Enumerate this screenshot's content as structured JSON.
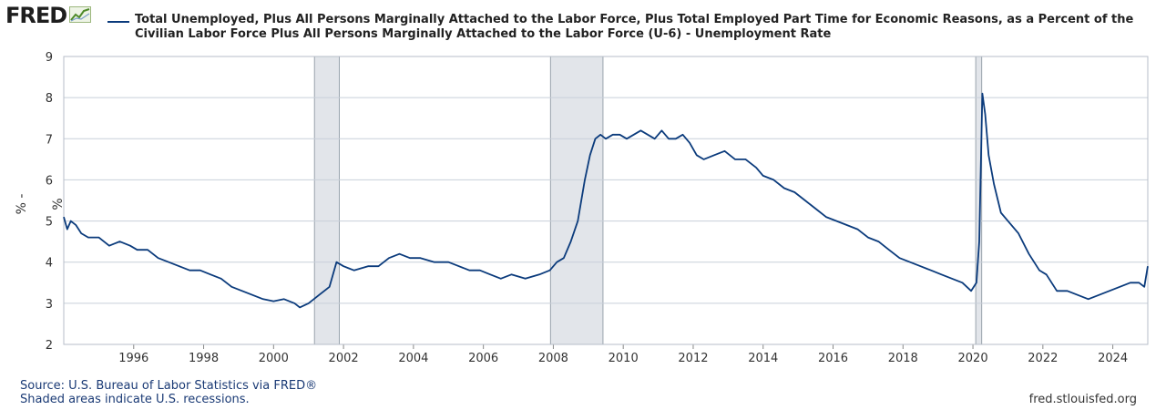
{
  "header": {
    "logo_text": "FRED",
    "logo_icon": "line-chart-icon"
  },
  "source": {
    "line1": "Source: U.S. Bureau of Labor Statistics via FRED®",
    "line2": "Shaded areas indicate U.S. recessions.",
    "site": "fred.stlouisfed.org"
  },
  "colors": {
    "series": "#0b3b7c",
    "recession": "#e2e5ea",
    "grid": "#c8cfd9"
  },
  "chart_data": {
    "type": "line",
    "title": "",
    "xlabel": "",
    "ylabel": "% - %",
    "xlim": [
      1994.0,
      2025.0
    ],
    "ylim": [
      2,
      9
    ],
    "yticks": [
      2,
      3,
      4,
      5,
      6,
      7,
      8,
      9
    ],
    "xticks": [
      1996,
      1998,
      2000,
      2002,
      2004,
      2006,
      2008,
      2010,
      2012,
      2014,
      2016,
      2018,
      2020,
      2022,
      2024
    ],
    "grid": true,
    "legend_position": "top",
    "recessions": [
      [
        2001.17,
        2001.88
      ],
      [
        2007.92,
        2009.42
      ],
      [
        2020.08,
        2020.25
      ]
    ],
    "series": [
      {
        "name": "Total Unemployed, Plus All Persons Marginally Attached to the Labor Force, Plus Total Employed Part Time for Economic Reasons, as a Percent of the Civilian Labor Force Plus All Persons Marginally Attached to the Labor Force (U-6) - Unemployment Rate",
        "x": [
          1994.0,
          1994.1,
          1994.2,
          1994.35,
          1994.5,
          1994.7,
          1995.0,
          1995.3,
          1995.6,
          1995.9,
          1996.1,
          1996.4,
          1996.7,
          1997.0,
          1997.3,
          1997.6,
          1997.9,
          1998.2,
          1998.5,
          1998.8,
          1999.1,
          1999.4,
          1999.7,
          2000.0,
          2000.3,
          2000.6,
          2000.75,
          2001.0,
          2001.3,
          2001.6,
          2001.8,
          2002.0,
          2002.3,
          2002.7,
          2003.0,
          2003.3,
          2003.6,
          2003.9,
          2004.2,
          2004.6,
          2005.0,
          2005.3,
          2005.6,
          2005.9,
          2006.2,
          2006.5,
          2006.8,
          2007.2,
          2007.6,
          2007.9,
          2008.1,
          2008.3,
          2008.5,
          2008.7,
          2008.9,
          2009.05,
          2009.2,
          2009.35,
          2009.5,
          2009.7,
          2009.9,
          2010.1,
          2010.3,
          2010.5,
          2010.7,
          2010.9,
          2011.1,
          2011.3,
          2011.5,
          2011.7,
          2011.9,
          2012.1,
          2012.3,
          2012.6,
          2012.9,
          2013.2,
          2013.5,
          2013.8,
          2014.0,
          2014.3,
          2014.6,
          2014.9,
          2015.2,
          2015.5,
          2015.8,
          2016.1,
          2016.4,
          2016.7,
          2017.0,
          2017.3,
          2017.6,
          2017.9,
          2018.2,
          2018.5,
          2018.8,
          2019.1,
          2019.4,
          2019.7,
          2019.95,
          2020.1,
          2020.18,
          2020.27,
          2020.35,
          2020.45,
          2020.6,
          2020.8,
          2021.0,
          2021.3,
          2021.6,
          2021.9,
          2022.1,
          2022.4,
          2022.7,
          2023.0,
          2023.3,
          2023.6,
          2023.9,
          2024.2,
          2024.5,
          2024.75,
          2024.9,
          2025.0
        ],
        "values": [
          5.1,
          4.8,
          5.0,
          4.9,
          4.7,
          4.6,
          4.6,
          4.4,
          4.5,
          4.4,
          4.3,
          4.3,
          4.1,
          4.0,
          3.9,
          3.8,
          3.8,
          3.7,
          3.6,
          3.4,
          3.3,
          3.2,
          3.1,
          3.05,
          3.1,
          3.0,
          2.9,
          3.0,
          3.2,
          3.4,
          4.0,
          3.9,
          3.8,
          3.9,
          3.9,
          4.1,
          4.2,
          4.1,
          4.1,
          4.0,
          4.0,
          3.9,
          3.8,
          3.8,
          3.7,
          3.6,
          3.7,
          3.6,
          3.7,
          3.8,
          4.0,
          4.1,
          4.5,
          5.0,
          6.0,
          6.6,
          7.0,
          7.1,
          7.0,
          7.1,
          7.1,
          7.0,
          7.1,
          7.2,
          7.1,
          7.0,
          7.2,
          7.0,
          7.0,
          7.1,
          6.9,
          6.6,
          6.5,
          6.6,
          6.7,
          6.5,
          6.5,
          6.3,
          6.1,
          6.0,
          5.8,
          5.7,
          5.5,
          5.3,
          5.1,
          5.0,
          4.9,
          4.8,
          4.6,
          4.5,
          4.3,
          4.1,
          4.0,
          3.9,
          3.8,
          3.7,
          3.6,
          3.5,
          3.3,
          3.5,
          4.5,
          8.1,
          7.6,
          6.6,
          5.9,
          5.2,
          5.0,
          4.7,
          4.2,
          3.8,
          3.7,
          3.3,
          3.3,
          3.2,
          3.1,
          3.2,
          3.3,
          3.4,
          3.5,
          3.5,
          3.4,
          3.9
        ]
      }
    ]
  }
}
